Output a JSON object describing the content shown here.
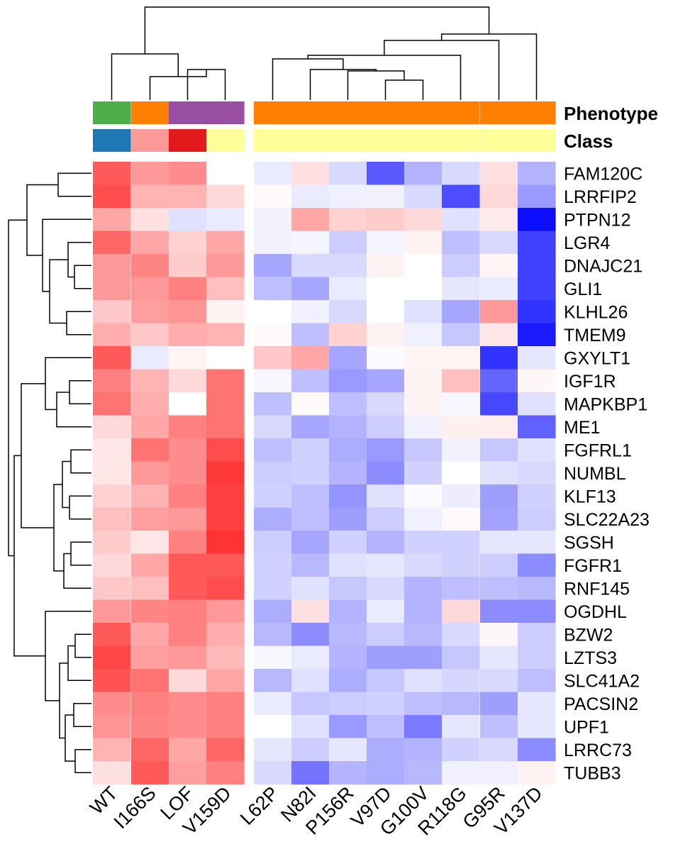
{
  "chart_data": {
    "type": "heatmap",
    "title": "",
    "annotation_labels": {
      "phenotype": "Phenotype",
      "class": "Class"
    },
    "columns": [
      "WT",
      "I166S",
      "LOF",
      "V159D",
      "L62P",
      "N82I",
      "P156R",
      "V97D",
      "G100V",
      "R118G",
      "G95R",
      "V137D"
    ],
    "rows": [
      "FAM120C",
      "LRRFIP2",
      "PTPN12",
      "LGR4",
      "DNAJC21",
      "GLI1",
      "KLHL26",
      "TMEM9",
      "GXYLT1",
      "IGF1R",
      "MAPKBP1",
      "ME1",
      "FGFRL1",
      "NUMBL",
      "KLF13",
      "SLC22A23",
      "SGSH",
      "FGFR1",
      "RNF145",
      "OGDHL",
      "BZW2",
      "LZTS3",
      "SLC41A2",
      "PACSIN2",
      "UPF1",
      "LRRC73",
      "TUBB3"
    ],
    "value_scale": {
      "min": -1,
      "max": 1,
      "low_color": "#0000ff",
      "mid_color": "#ffffff",
      "high_color": "#ff0000"
    },
    "phenotype_colors": [
      "#4daf4a",
      "#ff7f00",
      "#984ea3",
      "#984ea3",
      "#ff7f00",
      "#ff7f00",
      "#ff7f00",
      "#ff7f00",
      "#ff7f00",
      "#ff7f00",
      "#ff7f00",
      "#ff7f00"
    ],
    "class_colors": [
      "#1f78b4",
      "#fb9a99",
      "#e31a1c",
      "#ffff99",
      "#ffff99",
      "#ffff99",
      "#ffff99",
      "#ffff99",
      "#ffff99",
      "#ffff99",
      "#ffff99",
      "#ffff99"
    ],
    "values": [
      [
        0.65,
        0.4,
        0.45,
        0.0,
        -0.08,
        0.12,
        -0.15,
        -0.65,
        -0.3,
        -0.15,
        0.12,
        -0.3
      ],
      [
        0.7,
        0.3,
        0.3,
        0.15,
        0.02,
        -0.08,
        -0.06,
        -0.05,
        -0.15,
        -0.7,
        0.15,
        -0.4
      ],
      [
        0.35,
        0.12,
        -0.12,
        -0.08,
        -0.05,
        0.35,
        0.18,
        0.2,
        0.15,
        -0.12,
        0.08,
        -0.95
      ],
      [
        0.6,
        0.35,
        0.18,
        0.35,
        -0.05,
        -0.04,
        -0.2,
        -0.04,
        0.05,
        -0.25,
        -0.15,
        -0.75
      ],
      [
        0.4,
        0.48,
        0.2,
        0.4,
        -0.35,
        -0.15,
        -0.15,
        0.05,
        0.0,
        -0.2,
        0.04,
        -0.75
      ],
      [
        0.4,
        0.4,
        0.5,
        0.25,
        -0.25,
        -0.35,
        -0.08,
        0.0,
        0.0,
        -0.1,
        -0.08,
        -0.75
      ],
      [
        0.22,
        0.38,
        0.42,
        0.05,
        0.0,
        -0.06,
        -0.15,
        0.0,
        -0.12,
        -0.35,
        0.4,
        -0.8
      ],
      [
        0.32,
        0.22,
        0.32,
        0.3,
        0.02,
        -0.25,
        0.18,
        0.05,
        -0.06,
        -0.22,
        0.1,
        -0.9
      ],
      [
        0.65,
        -0.08,
        0.04,
        0.0,
        0.22,
        0.35,
        -0.35,
        -0.02,
        0.04,
        0.04,
        -0.8,
        -0.1
      ],
      [
        0.5,
        0.3,
        0.15,
        0.55,
        -0.03,
        -0.25,
        -0.4,
        -0.35,
        0.05,
        0.25,
        -0.6,
        0.03
      ],
      [
        0.55,
        0.32,
        0.0,
        0.55,
        -0.25,
        0.02,
        -0.25,
        -0.15,
        0.05,
        -0.03,
        -0.72,
        -0.12
      ],
      [
        0.15,
        0.35,
        0.5,
        0.55,
        -0.15,
        -0.35,
        -0.3,
        -0.2,
        -0.06,
        0.06,
        0.07,
        -0.62
      ],
      [
        0.1,
        0.55,
        0.45,
        0.7,
        -0.25,
        -0.18,
        -0.32,
        -0.4,
        -0.22,
        -0.05,
        -0.22,
        -0.12
      ],
      [
        0.1,
        0.4,
        0.45,
        0.78,
        -0.2,
        -0.18,
        -0.3,
        -0.45,
        -0.18,
        0.0,
        -0.12,
        -0.15
      ],
      [
        0.18,
        0.3,
        0.5,
        0.75,
        -0.18,
        -0.25,
        -0.42,
        -0.12,
        -0.02,
        -0.07,
        -0.38,
        -0.18
      ],
      [
        0.25,
        0.38,
        0.4,
        0.75,
        -0.32,
        -0.25,
        -0.38,
        -0.2,
        -0.06,
        0.02,
        -0.36,
        -0.2
      ],
      [
        0.2,
        0.1,
        0.5,
        0.8,
        -0.2,
        -0.35,
        -0.18,
        -0.3,
        -0.18,
        -0.18,
        -0.1,
        -0.1
      ],
      [
        0.15,
        0.35,
        0.65,
        0.65,
        -0.18,
        -0.28,
        -0.12,
        -0.1,
        -0.15,
        -0.18,
        -0.2,
        -0.45
      ],
      [
        0.22,
        0.25,
        0.65,
        0.7,
        -0.18,
        -0.12,
        -0.22,
        -0.15,
        -0.3,
        -0.25,
        -0.25,
        -0.28
      ],
      [
        0.4,
        0.48,
        0.5,
        0.4,
        -0.32,
        0.12,
        -0.3,
        -0.08,
        -0.3,
        0.15,
        -0.45,
        -0.45
      ],
      [
        0.65,
        0.35,
        0.5,
        0.32,
        -0.28,
        -0.45,
        -0.28,
        -0.2,
        -0.28,
        -0.15,
        0.03,
        -0.2
      ],
      [
        0.72,
        0.38,
        0.4,
        0.28,
        -0.03,
        -0.08,
        -0.3,
        -0.38,
        -0.38,
        -0.22,
        -0.1,
        -0.2
      ],
      [
        0.68,
        0.55,
        0.15,
        0.35,
        -0.28,
        -0.12,
        -0.32,
        -0.22,
        -0.12,
        -0.16,
        -0.15,
        -0.25
      ],
      [
        0.45,
        0.5,
        0.45,
        0.5,
        -0.08,
        -0.22,
        -0.2,
        -0.18,
        -0.25,
        -0.28,
        -0.38,
        -0.1
      ],
      [
        0.42,
        0.48,
        0.45,
        0.5,
        0.0,
        -0.12,
        -0.4,
        -0.25,
        -0.52,
        -0.1,
        -0.25,
        -0.1
      ],
      [
        0.3,
        0.6,
        0.35,
        0.6,
        -0.1,
        -0.2,
        -0.1,
        -0.32,
        -0.3,
        -0.18,
        -0.15,
        -0.45
      ],
      [
        0.12,
        0.65,
        0.38,
        0.5,
        -0.15,
        -0.55,
        -0.3,
        -0.32,
        -0.28,
        -0.06,
        -0.06,
        0.05
      ]
    ]
  }
}
